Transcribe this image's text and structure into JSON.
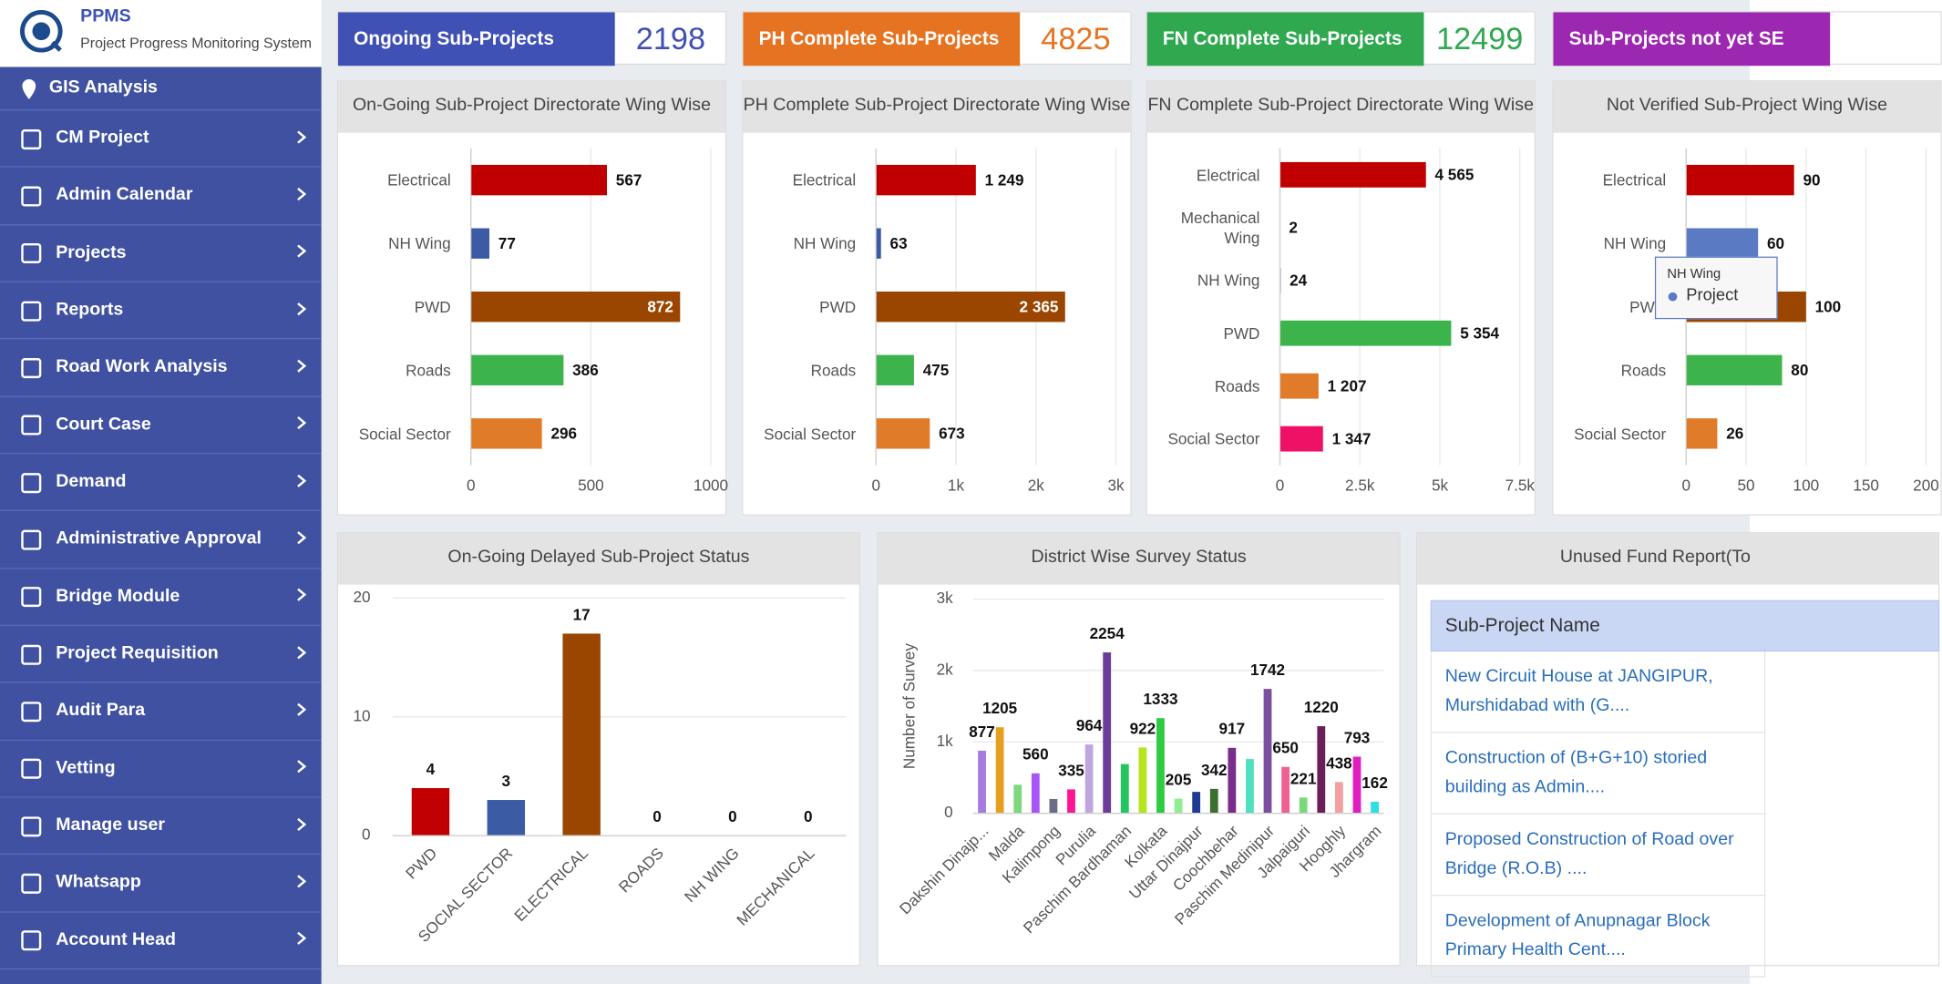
{
  "header": {
    "app_name": "PPMS",
    "subtitle": "Project Progress Monitoring System"
  },
  "sidebar": {
    "items": [
      "GIS Analysis",
      "CM Project",
      "Admin Calendar",
      "Projects",
      "Reports",
      "Road Work Analysis",
      "Court Case",
      "Demand",
      "Administrative Approval",
      "Bridge Module",
      "Project Requisition",
      "Audit Para",
      "Vetting",
      "Manage user",
      "Whatsapp",
      "Account Head"
    ]
  },
  "stat_cards": [
    {
      "label": "Ongoing Sub-Projects",
      "value": 2198,
      "color": "#3f51b5"
    },
    {
      "label": "PH Complete Sub-Projects",
      "value": 4825,
      "color": "#e67322"
    },
    {
      "label": "FN Complete Sub-Projects",
      "value": 12499,
      "color": "#2fa84f"
    },
    {
      "label": "Sub-Projects not yet SE",
      "color": "#9c27b0"
    }
  ],
  "charts": [
    {
      "type": "hbar",
      "title": "On-Going Sub-Project Directorate Wing Wise",
      "categories": [
        "Electrical",
        "NH Wing",
        "PWD",
        "Roads",
        "Social Sector"
      ],
      "values": [
        567,
        77,
        872,
        386,
        296
      ],
      "colors": [
        "#c00000",
        "#3b5ba5",
        "#9a4500",
        "#3cb44b",
        "#e07b2a"
      ],
      "xlim": [
        0,
        1000
      ],
      "xticks": [
        0,
        500,
        1000
      ],
      "grid": true
    },
    {
      "type": "hbar",
      "title": "PH Complete Sub-Project Directorate Wing Wise",
      "categories": [
        "Electrical",
        "NH Wing",
        "PWD",
        "Roads",
        "Social Sector"
      ],
      "values": [
        1249,
        63,
        2365,
        475,
        673
      ],
      "value_labels": [
        "1 249",
        "63",
        "2 365",
        "475",
        "673"
      ],
      "colors": [
        "#c00000",
        "#3b5ba5",
        "#9a4500",
        "#3cb44b",
        "#e07b2a"
      ],
      "xlim": [
        0,
        3000
      ],
      "xticks": [
        0,
        {
          "value": 1000,
          "label": "1k"
        },
        {
          "value": 2000,
          "label": "2k"
        },
        {
          "value": 3000,
          "label": "3k"
        }
      ],
      "grid": true
    },
    {
      "type": "hbar",
      "title": "FN Complete Sub-Project Directorate Wing Wise",
      "categories": [
        "Electrical",
        "Mechanical Wing",
        "NH Wing",
        "PWD",
        "Roads",
        "Social Sector"
      ],
      "values": [
        4565,
        2,
        24,
        5354,
        1207,
        1347
      ],
      "value_labels": [
        "4 565",
        "2",
        "24",
        "5 354",
        "1 207",
        "1 347"
      ],
      "colors": [
        "#c00000",
        "#7f7f7f",
        "#3b5ba5",
        "#3cb44b",
        "#e07b2a",
        "#ee1166"
      ],
      "xlim": [
        0,
        7500
      ],
      "xticks": [
        0,
        {
          "value": 2500,
          "label": "2.5k"
        },
        {
          "value": 5000,
          "label": "5k"
        },
        {
          "value": 7500,
          "label": "7.5k"
        }
      ],
      "grid": true
    },
    {
      "type": "hbar",
      "title": "Not Verified Sub-Project Wing Wise",
      "categories": [
        "Electrical",
        "NH Wing",
        "PWD",
        "Roads",
        "Social Sector"
      ],
      "values": [
        90,
        60,
        100,
        80,
        26
      ],
      "colors": [
        "#c00000",
        "#5a7bc4",
        "#9a4500",
        "#3cb44b",
        "#e07b2a"
      ],
      "xlim": [
        0,
        200
      ],
      "xticks": [
        0,
        50,
        100,
        150,
        200
      ],
      "grid": true,
      "tooltip": {
        "title": "NH Wing",
        "series": "Project"
      }
    },
    {
      "type": "column",
      "title": "On-Going Delayed Sub-Project Status",
      "categories": [
        "PWD",
        "SOCIAL SECTOR",
        "ELECTRICAL",
        "ROADS",
        "NH WING",
        "MECHANICAL"
      ],
      "values": [
        4,
        3,
        17,
        0,
        0,
        0
      ],
      "colors": [
        "#c00000",
        "#3b5ba5",
        "#9a4500",
        "#3cb44b",
        "#e07b2a",
        "#7f7f7f"
      ],
      "ylim": [
        0,
        20
      ],
      "yticks": [
        0,
        10,
        20
      ],
      "grid": true
    },
    {
      "type": "column",
      "title": "District Wise Survey Status",
      "y_label": "Number of Survey",
      "categories": [
        "Dakshin Dinajp...",
        null,
        "Malda",
        null,
        "Kalimpong",
        null,
        "Purulia",
        null,
        "Paschim Bardhaman",
        null,
        "Kolkata",
        null,
        "Uttar Dinajpur",
        null,
        "Coochbehar",
        null,
        "Paschim Medinipur",
        null,
        "Jalpaiguri",
        null,
        "Hooghly",
        null,
        "Jhargram"
      ],
      "values": [
        877,
        1205,
        400,
        560,
        200,
        335,
        964,
        2254,
        690,
        922,
        1333,
        205,
        300,
        342,
        917,
        760,
        1742,
        650,
        221,
        1220,
        438,
        793,
        162
      ],
      "value_labels": [
        "877",
        "1205",
        null,
        "560",
        null,
        "335",
        "964",
        "2254",
        null,
        "922",
        "1333",
        "205",
        null,
        "342",
        "917",
        null,
        "1742",
        "650",
        "221",
        "1220",
        "438",
        "793",
        "162"
      ],
      "colors": [
        "#a77be0",
        "#e6a020",
        "#7ed87e",
        "#a855f7",
        "#6b6b8a",
        "#ff1493",
        "#c0a6e0",
        "#6a3d9a",
        "#22c55e",
        "#b5e61d",
        "#2ecc40",
        "#90ee90",
        "#1f3a93",
        "#3c6e2f",
        "#7b2d8b",
        "#4fe0c0",
        "#7a4fa0",
        "#f06090",
        "#7bd97b",
        "#6a1f5a",
        "#f4a0a0",
        "#e01ec0",
        "#30e0e0"
      ],
      "ylim": [
        0,
        3000
      ],
      "yticks": [
        0,
        {
          "value": 1000,
          "label": "1k"
        },
        {
          "value": 2000,
          "label": "2k"
        },
        {
          "value": 3000,
          "label": "3k"
        }
      ],
      "grid": true
    }
  ],
  "table": {
    "title": "Unused Fund Report(To",
    "header": "Sub-Project Name",
    "rows": [
      "New Circuit House at JANGIPUR, Murshidabad with (G....",
      "Construction of (B+G+10) storied building as Admin....",
      "Proposed Construction of Road over Bridge (R.O.B) ....",
      "Development of Anupnagar Block Primary Health Cent...."
    ]
  }
}
